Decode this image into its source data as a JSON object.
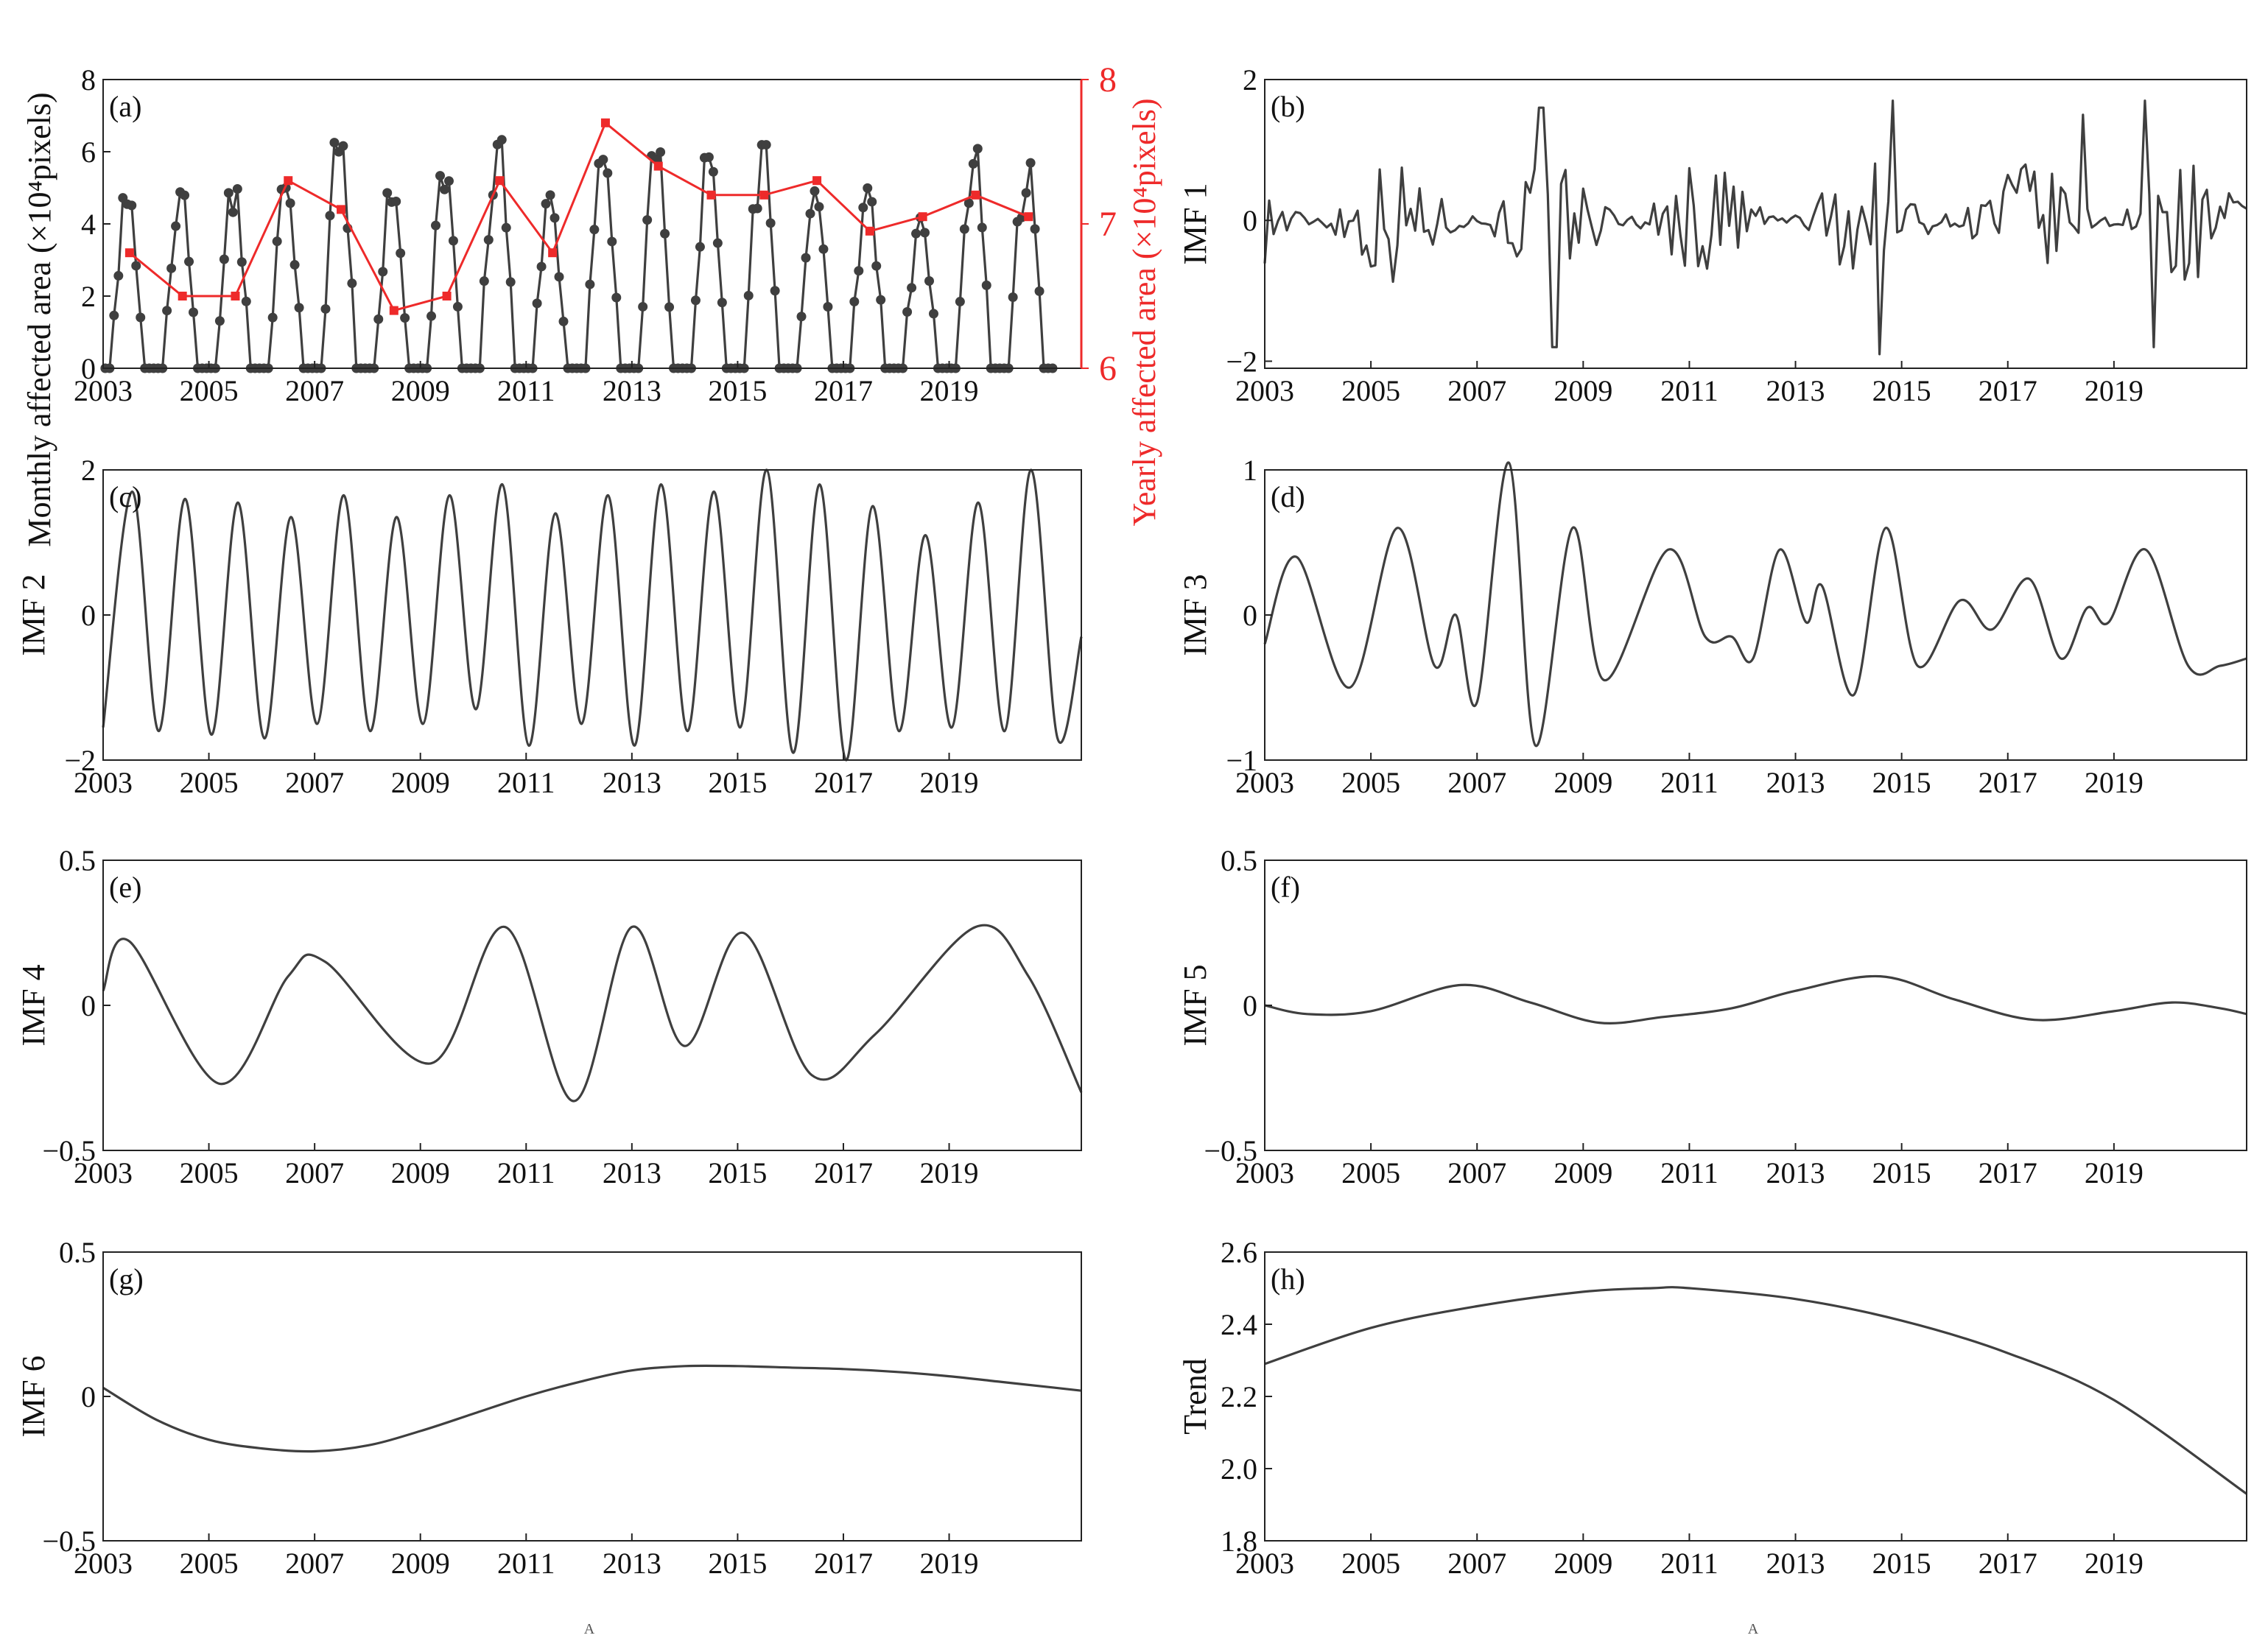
{
  "colors": {
    "series": "#3f3f3f",
    "yearly": "#ee2a2a",
    "axis": "#222222"
  },
  "chart_data": [
    {
      "id": "a",
      "type": "line",
      "panel_label": "(a)",
      "ylabel": "Monthly affected area (×10⁴pixels)",
      "ylabel_right": "Yearly affected area (×10⁴pixels)",
      "xlim": [
        2003,
        2021.5
      ],
      "ylim": [
        0,
        8
      ],
      "ylim_right": [
        6,
        8
      ],
      "xticks": [
        "2003",
        "2005",
        "2007",
        "2009",
        "2011",
        "2013",
        "2015",
        "2017",
        "2019"
      ],
      "yticks": [
        "0",
        "2",
        "4",
        "6",
        "8"
      ],
      "yticks_right": [
        "6",
        "7",
        "8"
      ],
      "series": [
        {
          "name": "Monthly affected area",
          "style": "line-dots",
          "generator": "monthly",
          "points_per_year": 12,
          "peaks": [
            4.9,
            5.2,
            5.0,
            5.0,
            6.3,
            5.1,
            5.3,
            6.5,
            4.9,
            6.1,
            6.2,
            6.1,
            6.4,
            5.1,
            5.1,
            4.3,
            6.1,
            5.7
          ]
        },
        {
          "name": "Yearly affected area",
          "axis": "right",
          "style": "line-squares",
          "x": [
            2003.5,
            2004.5,
            2005.5,
            2006.5,
            2007.5,
            2008.5,
            2009.5,
            2010.5,
            2011.5,
            2012.5,
            2013.5,
            2014.5,
            2015.5,
            2016.5,
            2017.5,
            2018.5,
            2019.5,
            2020.5
          ],
          "values": [
            6.8,
            6.5,
            6.5,
            7.3,
            7.1,
            6.4,
            6.5,
            7.3,
            6.8,
            7.7,
            7.4,
            7.2,
            7.2,
            7.3,
            6.95,
            7.05,
            7.2,
            7.05
          ]
        }
      ]
    },
    {
      "id": "b",
      "type": "line",
      "panel_label": "(b)",
      "ylabel": "IMF 1",
      "xlim": [
        2003,
        2021.5
      ],
      "ylim": [
        -2.1,
        2
      ],
      "xticks": [
        "2003",
        "2005",
        "2007",
        "2009",
        "2011",
        "2013",
        "2015",
        "2017",
        "2019"
      ],
      "ytick_values": [
        -2,
        0,
        2
      ],
      "yticks": [
        "−2",
        "0",
        "2"
      ],
      "series": [
        {
          "name": "IMF 1",
          "generator": "noise",
          "amplitude": 0.9,
          "spikes": [
            [
              2008.2,
              1.6
            ],
            [
              2008.45,
              -1.8
            ],
            [
              2014.6,
              -1.9
            ],
            [
              2014.8,
              1.7
            ],
            [
              2018.4,
              1.5
            ],
            [
              2019.6,
              1.7
            ],
            [
              2019.75,
              -1.8
            ]
          ]
        }
      ]
    },
    {
      "id": "c",
      "type": "line",
      "panel_label": "(c)",
      "ylabel": "IMF 2",
      "xlim": [
        2003,
        2021.5
      ],
      "ylim": [
        -2,
        2
      ],
      "xticks": [
        "2003",
        "2005",
        "2007",
        "2009",
        "2011",
        "2013",
        "2015",
        "2017",
        "2019"
      ],
      "ytick_values": [
        -2,
        0,
        2
      ],
      "yticks": [
        "−2",
        "0",
        "2"
      ],
      "series": [
        {
          "name": "IMF 2",
          "generator": "annual",
          "maxima": [
            1.7,
            1.6,
            1.55,
            1.35,
            1.65,
            1.35,
            1.65,
            1.8,
            1.4,
            1.65,
            1.8,
            1.7,
            2.0,
            1.8,
            1.5,
            1.1,
            1.55,
            2.0
          ],
          "minima": [
            -1.6,
            -1.65,
            -1.7,
            -1.5,
            -1.6,
            -1.5,
            -1.3,
            -1.8,
            -1.5,
            -1.8,
            -1.6,
            -1.55,
            -1.9,
            -2.0,
            -1.6,
            -1.55,
            -1.6,
            -1.7
          ]
        }
      ]
    },
    {
      "id": "d",
      "type": "line",
      "panel_label": "(d)",
      "ylabel": "IMF 3",
      "xlim": [
        2003,
        2021.5
      ],
      "ylim": [
        -1,
        1
      ],
      "xticks": [
        "2003",
        "2005",
        "2007",
        "2009",
        "2011",
        "2013",
        "2015",
        "2017",
        "2019"
      ],
      "ytick_values": [
        -1,
        0,
        1
      ],
      "yticks": [
        "−1",
        "0",
        "1"
      ],
      "series": [
        {
          "name": "IMF 3",
          "x": [
            2003,
            2003.6,
            2004.6,
            2005.5,
            2006.2,
            2006.6,
            2007.0,
            2007.6,
            2008.1,
            2008.8,
            2009.4,
            2010.6,
            2011.3,
            2011.8,
            2012.2,
            2012.7,
            2013.2,
            2013.5,
            2014.1,
            2014.7,
            2015.3,
            2016.1,
            2016.7,
            2017.4,
            2018.0,
            2018.5,
            2018.9,
            2019.6,
            2020.4,
            2021.0,
            2021.5
          ],
          "values": [
            -0.2,
            0.4,
            -0.5,
            0.6,
            -0.35,
            0.0,
            -0.6,
            1.05,
            -0.9,
            0.6,
            -0.45,
            0.45,
            -0.15,
            -0.15,
            -0.3,
            0.45,
            -0.05,
            0.2,
            -0.55,
            0.6,
            -0.35,
            0.1,
            -0.1,
            0.25,
            -0.3,
            0.05,
            -0.05,
            0.45,
            -0.35,
            -0.35,
            -0.3
          ]
        }
      ]
    },
    {
      "id": "e",
      "type": "line",
      "panel_label": "(e)",
      "ylabel": "IMF 4",
      "xlim": [
        2003,
        2021.5
      ],
      "ylim": [
        -0.5,
        0.5
      ],
      "xticks": [
        "2003",
        "2005",
        "2007",
        "2009",
        "2011",
        "2013",
        "2015",
        "2017",
        "2019"
      ],
      "ytick_values": [
        -0.5,
        0,
        0.5
      ],
      "yticks": [
        "−0.5",
        "0",
        "0.5"
      ],
      "series": [
        {
          "name": "IMF 4",
          "x": [
            2003,
            2003.5,
            2005.2,
            2006.5,
            2007.2,
            2009.2,
            2010.6,
            2011.9,
            2013.0,
            2014.0,
            2015.1,
            2016.4,
            2017.6,
            2019.5,
            2020.5,
            2021.5
          ],
          "values": [
            0.05,
            0.22,
            -0.27,
            0.1,
            0.15,
            -0.2,
            0.27,
            -0.33,
            0.27,
            -0.14,
            0.25,
            -0.24,
            -0.1,
            0.27,
            0.1,
            -0.3
          ]
        }
      ]
    },
    {
      "id": "f",
      "type": "line",
      "panel_label": "(f)",
      "ylabel": "IMF 5",
      "xlim": [
        2003,
        2021.5
      ],
      "ylim": [
        -0.5,
        0.5
      ],
      "xticks": [
        "2003",
        "2005",
        "2007",
        "2009",
        "2011",
        "2013",
        "2015",
        "2017",
        "2019"
      ],
      "ytick_values": [
        -0.5,
        0,
        0.5
      ],
      "yticks": [
        "−0.5",
        "0",
        "0.5"
      ],
      "series": [
        {
          "name": "IMF 5",
          "x": [
            2003,
            2003.8,
            2005.0,
            2006.7,
            2008.0,
            2009.3,
            2010.5,
            2011.8,
            2013.0,
            2014.6,
            2016.0,
            2017.5,
            2019.0,
            2020.1,
            2021.0,
            2021.5
          ],
          "values": [
            0.0,
            -0.03,
            -0.02,
            0.07,
            0.01,
            -0.06,
            -0.04,
            -0.01,
            0.05,
            0.1,
            0.02,
            -0.05,
            -0.02,
            0.01,
            -0.01,
            -0.03
          ]
        }
      ]
    },
    {
      "id": "g",
      "type": "line",
      "panel_label": "(g)",
      "ylabel": "IMF 6",
      "xlim": [
        2003,
        2021.5
      ],
      "ylim": [
        -0.5,
        0.5
      ],
      "xticks": [
        "2003",
        "2005",
        "2007",
        "2009",
        "2011",
        "2013",
        "2015",
        "2017",
        "2019"
      ],
      "ytick_values": [
        -0.5,
        0,
        0.5
      ],
      "yticks": [
        "−0.5",
        "0",
        "0.5"
      ],
      "series": [
        {
          "name": "IMF 6",
          "x": [
            2003,
            2004,
            2005,
            2006,
            2007,
            2008,
            2009,
            2010,
            2011,
            2012,
            2013,
            2014,
            2015,
            2016,
            2017,
            2018,
            2019,
            2020,
            2021,
            2021.5
          ],
          "values": [
            0.03,
            -0.08,
            -0.15,
            -0.18,
            -0.19,
            -0.17,
            -0.12,
            -0.06,
            0.0,
            0.05,
            0.09,
            0.105,
            0.105,
            0.1,
            0.095,
            0.085,
            0.07,
            0.05,
            0.03,
            0.02
          ]
        }
      ]
    },
    {
      "id": "h",
      "type": "line",
      "panel_label": "(h)",
      "ylabel": "Trend",
      "xlim": [
        2003,
        2021.5
      ],
      "ylim": [
        1.8,
        2.6
      ],
      "xticks": [
        "2003",
        "2005",
        "2007",
        "2009",
        "2011",
        "2013",
        "2015",
        "2017",
        "2019"
      ],
      "ytick_values": [
        1.8,
        2.0,
        2.2,
        2.4,
        2.6
      ],
      "yticks": [
        "1.8",
        "2.0",
        "2.2",
        "2.4",
        "2.6"
      ],
      "series": [
        {
          "name": "Trend",
          "x": [
            2003,
            2005,
            2007,
            2009,
            2010.3,
            2011,
            2013,
            2015,
            2017,
            2019,
            2021.5
          ],
          "values": [
            2.29,
            2.39,
            2.45,
            2.49,
            2.5,
            2.5,
            2.47,
            2.41,
            2.32,
            2.19,
            1.93
          ]
        }
      ]
    }
  ],
  "footer": {
    "left": "A",
    "right": "A"
  }
}
